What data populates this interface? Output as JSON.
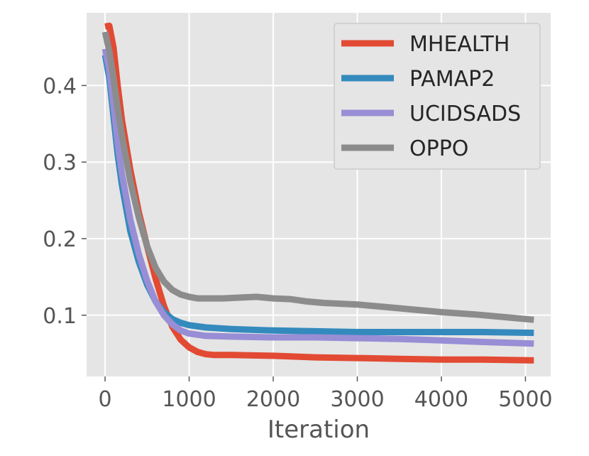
{
  "chart_data": {
    "type": "line",
    "title": "",
    "xlabel": "Iteration",
    "ylabel": "",
    "xlim": [
      -220,
      5300
    ],
    "ylim": [
      0.02,
      0.495
    ],
    "xticks": [
      0,
      1000,
      2000,
      3000,
      4000,
      5000
    ],
    "yticks": [
      0.1,
      0.2,
      0.3,
      0.4
    ],
    "xtick_labels": [
      "0",
      "1000",
      "2000",
      "3000",
      "4000",
      "5000"
    ],
    "ytick_labels": [
      "0.1",
      "0.2",
      "0.3",
      "0.4"
    ],
    "grid": true,
    "legend_position": "top-right",
    "colors": {
      "background": "#e5e5e5",
      "grid": "#ffffff",
      "text": "#555555",
      "legend_bg": "#e5e5e5",
      "legend_border": "#cccccc"
    },
    "series": [
      {
        "name": "MHEALTH",
        "color": "#e24a33",
        "x": [
          0,
          50,
          100,
          150,
          200,
          300,
          400,
          500,
          600,
          700,
          800,
          900,
          1000,
          1100,
          1200,
          1300,
          1500,
          2000,
          2500,
          3000,
          3500,
          4000,
          4500,
          5100
        ],
        "y": [
          0.477,
          0.478,
          0.45,
          0.4,
          0.355,
          0.29,
          0.235,
          0.19,
          0.148,
          0.112,
          0.085,
          0.068,
          0.058,
          0.052,
          0.049,
          0.048,
          0.048,
          0.047,
          0.045,
          0.044,
          0.043,
          0.042,
          0.042,
          0.041
        ]
      },
      {
        "name": "PAMAP2",
        "color": "#348abd",
        "x": [
          0,
          50,
          100,
          150,
          200,
          300,
          400,
          500,
          600,
          700,
          800,
          900,
          1000,
          1200,
          1500,
          2000,
          2500,
          3000,
          3500,
          4000,
          4500,
          5100
        ],
        "y": [
          0.44,
          0.41,
          0.36,
          0.31,
          0.27,
          0.21,
          0.17,
          0.14,
          0.118,
          0.104,
          0.095,
          0.09,
          0.087,
          0.084,
          0.082,
          0.08,
          0.079,
          0.078,
          0.078,
          0.078,
          0.078,
          0.077
        ]
      },
      {
        "name": "UCIDSADS",
        "color": "#988ed5",
        "x": [
          0,
          50,
          100,
          150,
          200,
          300,
          400,
          500,
          600,
          700,
          800,
          900,
          1000,
          1200,
          1500,
          2000,
          2500,
          3000,
          3500,
          4000,
          4500,
          5100
        ],
        "y": [
          0.448,
          0.42,
          0.375,
          0.325,
          0.285,
          0.225,
          0.18,
          0.145,
          0.118,
          0.1,
          0.088,
          0.08,
          0.076,
          0.073,
          0.072,
          0.071,
          0.071,
          0.07,
          0.069,
          0.067,
          0.065,
          0.063
        ]
      },
      {
        "name": "OPPO",
        "color": "#8c8c8c",
        "x": [
          0,
          50,
          100,
          150,
          200,
          300,
          400,
          500,
          600,
          700,
          800,
          900,
          1000,
          1100,
          1200,
          1400,
          1600,
          1800,
          2000,
          2200,
          2400,
          2600,
          2800,
          3000,
          3300,
          3600,
          4000,
          4400,
          4800,
          5100
        ],
        "y": [
          0.47,
          0.445,
          0.41,
          0.37,
          0.335,
          0.275,
          0.228,
          0.19,
          0.162,
          0.144,
          0.133,
          0.127,
          0.124,
          0.122,
          0.122,
          0.122,
          0.123,
          0.124,
          0.122,
          0.121,
          0.118,
          0.116,
          0.115,
          0.114,
          0.111,
          0.108,
          0.104,
          0.101,
          0.097,
          0.094
        ]
      }
    ]
  }
}
